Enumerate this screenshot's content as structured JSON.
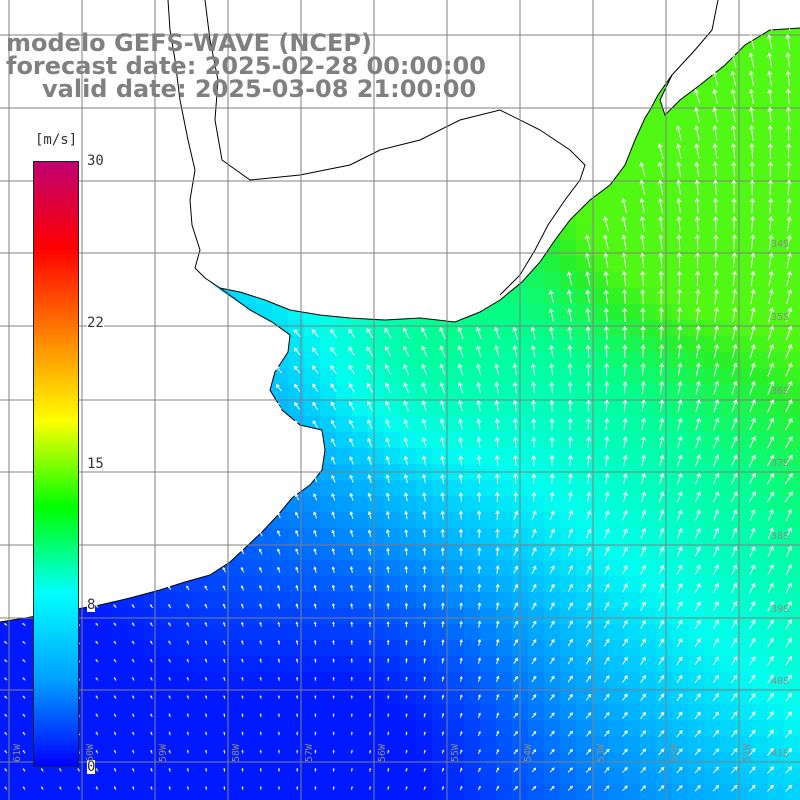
{
  "title": {
    "line1": "modelo GEFS-WAVE (NCEP)",
    "line2": "forecast date: 2025-02-28 00:00:00",
    "line3": "valid date: 2025-03-08 21:00:00"
  },
  "colorbar": {
    "unit": "[m/s]",
    "min": 0,
    "max": 30,
    "ticks": [
      {
        "label": "30",
        "value": 30
      },
      {
        "label": "22",
        "value": 22
      },
      {
        "label": "15",
        "value": 15
      },
      {
        "label": "8",
        "value": 8
      },
      {
        "label": "0",
        "value": 0
      }
    ],
    "colors": [
      "#0000ff",
      "#00a0ff",
      "#00ffff",
      "#00ff00",
      "#ffff00",
      "#ff8000",
      "#ff0000",
      "#c00070"
    ]
  },
  "map": {
    "lat_labels": [
      "34S",
      "35S",
      "36S",
      "37S",
      "38S",
      "39S",
      "40S",
      "41S"
    ],
    "lon_labels": [
      "61W",
      "60W",
      "59W",
      "58W",
      "57W",
      "56W",
      "55W",
      "54W",
      "53W",
      "52W",
      "51W"
    ],
    "land_color": "#ffffff",
    "grid_color": "#808080",
    "arrow_color": "#ffffff",
    "coast_color": "#000000"
  }
}
